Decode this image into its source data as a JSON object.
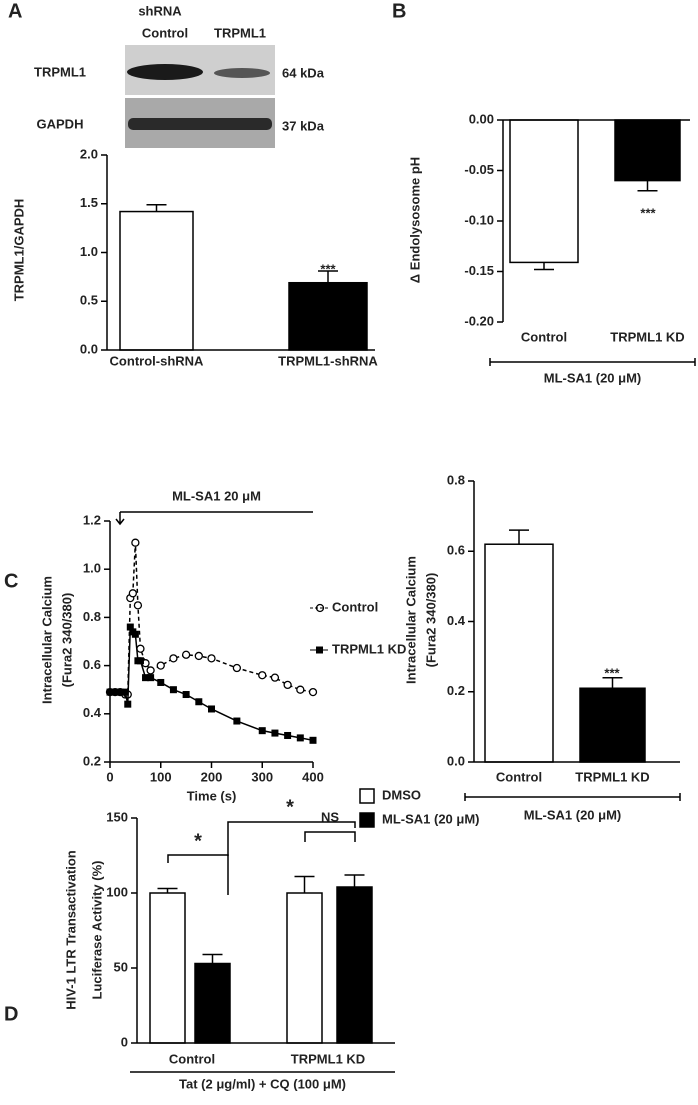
{
  "panels": [
    "A",
    "B",
    "C",
    "D"
  ],
  "blot": {
    "group_label": "shRNA",
    "lanes": [
      "Control",
      "TRPML1"
    ],
    "rows": [
      "TRPML1",
      "GAPDH"
    ],
    "sizes": [
      "64 kDa",
      "37 kDa"
    ]
  },
  "chart_data": [
    {
      "type": "bar",
      "y_label": [
        "TRPML1/GAPDH"
      ],
      "categories": [
        "Control-shRNA",
        "TRPML1-shRNA"
      ],
      "values": [
        1.42,
        0.69
      ],
      "errors": [
        0.07,
        0.12
      ],
      "colors": [
        "#ffffff",
        "#000000"
      ],
      "ylim": [
        0,
        2
      ],
      "yticks": [
        {
          "value": 0,
          "label": "0.0"
        },
        0.5,
        {
          "value": 1,
          "label": "1.0"
        },
        1.5,
        {
          "value": 2,
          "label": "2.0"
        }
      ],
      "annotations": [
        "***"
      ]
    },
    {
      "type": "bar",
      "y_label": [
        "Δ Endolysosome pH"
      ],
      "categories": [
        "Control",
        "TRPML1 KD"
      ],
      "values": [
        -0.141,
        -0.06
      ],
      "errors": [
        0.007,
        0.01
      ],
      "colors": [
        "#ffffff",
        "#000000"
      ],
      "ylim": [
        -0.2,
        0
      ],
      "yticks": [
        {
          "value": -0.2,
          "label": "-0.20"
        },
        {
          "value": -0.15,
          "label": "-0.15"
        },
        {
          "value": -0.1,
          "label": "-0.10"
        },
        {
          "value": -0.05,
          "label": "-0.05"
        },
        {
          "value": 0,
          "label": "0.00"
        }
      ],
      "bracket_label": "ML-SA1 (20 μM)",
      "annotations": [
        "***"
      ]
    },
    {
      "type": "line",
      "y_label": [
        "Intracellular Calcium",
        "(Fura2 340/380)"
      ],
      "x_label": "Time (s)",
      "top_label": "ML-SA1 20 μM",
      "x": [
        0,
        10,
        20,
        30,
        35,
        40,
        45,
        50,
        55,
        60,
        70,
        80,
        100,
        125,
        150,
        175,
        200,
        250,
        300,
        325,
        350,
        375,
        400
      ],
      "series": [
        {
          "name": "Control",
          "color": "#000000",
          "marker": "circle-open",
          "dashed": true,
          "values": [
            0.49,
            0.49,
            0.49,
            0.48,
            0.48,
            0.88,
            0.9,
            1.11,
            0.85,
            0.67,
            0.61,
            0.58,
            0.6,
            0.63,
            0.645,
            0.64,
            0.63,
            0.59,
            0.56,
            0.55,
            0.52,
            0.5,
            0.49
          ]
        },
        {
          "name": "TRPML1 KD",
          "color": "#000000",
          "marker": "square",
          "dashed": false,
          "values": [
            0.49,
            0.49,
            0.49,
            0.49,
            0.44,
            0.76,
            0.74,
            0.73,
            0.62,
            0.62,
            0.55,
            0.55,
            0.53,
            0.5,
            0.48,
            0.45,
            0.42,
            0.37,
            0.33,
            0.32,
            0.31,
            0.3,
            0.29
          ]
        }
      ],
      "xlim": [
        0,
        400
      ],
      "xticks": [
        0,
        100,
        200,
        300,
        400
      ],
      "ylim": [
        0.2,
        1.2
      ],
      "yticks": [
        0.2,
        0.4,
        0.6,
        0.8,
        {
          "value": 1,
          "label": "1.0"
        },
        1.2
      ]
    },
    {
      "type": "bar",
      "y_label": [
        "Intracellular Calcium",
        "(Fura2 340/380)"
      ],
      "categories": [
        "Control",
        "TRPML1 KD"
      ],
      "values": [
        0.62,
        0.21
      ],
      "errors": [
        0.04,
        0.03
      ],
      "colors": [
        "#ffffff",
        "#000000"
      ],
      "ylim": [
        0,
        0.8
      ],
      "yticks": [
        {
          "value": 0,
          "label": "0.0"
        },
        0.2,
        0.4,
        0.6,
        0.8
      ],
      "bracket_label": "ML-SA1 (20 μM)",
      "annotations": [
        "***"
      ]
    },
    {
      "type": "grouped_bar",
      "y_label": [
        "HIV-1 LTR Transactivation",
        "Luciferase Activity (%)"
      ],
      "x_label": "Tat (2 μg/ml) + CQ (100 μM)",
      "categories": [
        "Control",
        "TRPML1 KD"
      ],
      "series": [
        {
          "name": "DMSO",
          "color": "#ffffff",
          "values": [
            100,
            100
          ],
          "errors": [
            3,
            11
          ]
        },
        {
          "name": "ML-SA1 (20 μM)",
          "color": "#000000",
          "values": [
            53,
            104
          ],
          "errors": [
            6,
            8
          ]
        }
      ],
      "ylim": [
        0,
        150
      ],
      "yticks": [
        0,
        50,
        100,
        150
      ],
      "annotations": [
        "*",
        "*",
        "NS"
      ]
    }
  ]
}
